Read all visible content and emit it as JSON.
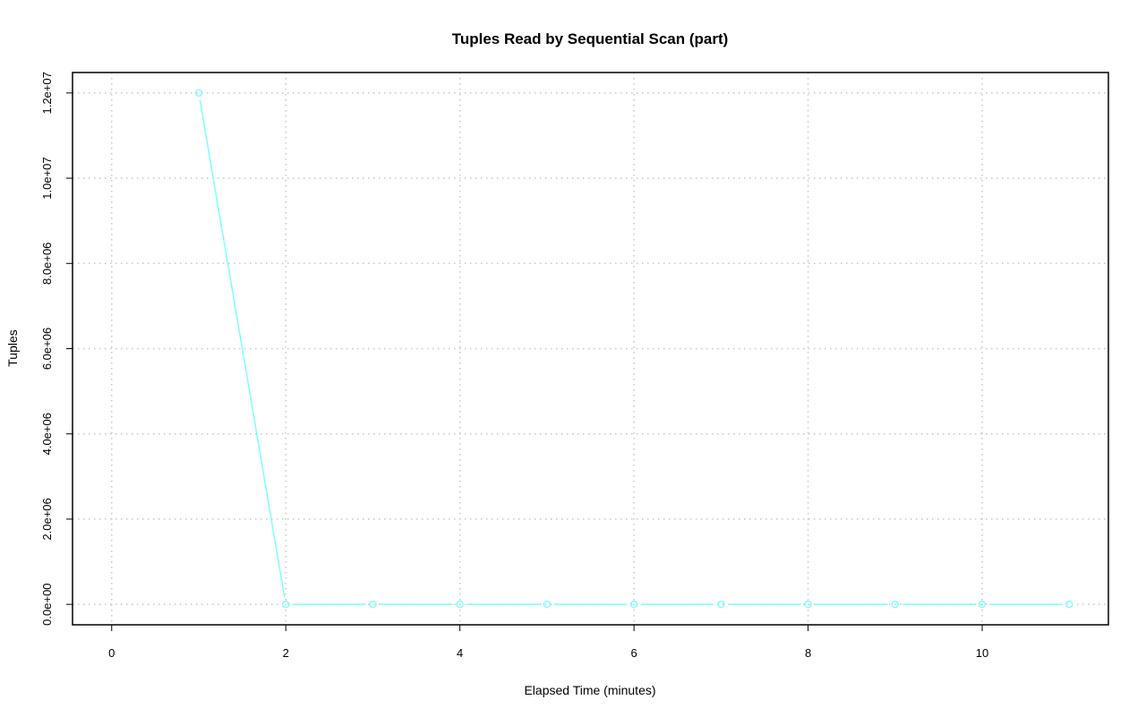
{
  "chart_data": {
    "type": "line",
    "title": "Tuples Read by Sequential Scan (part)",
    "xlabel": "Elapsed Time (minutes)",
    "ylabel": "Tuples",
    "xlim": [
      -0.45,
      11.45
    ],
    "ylim": [
      -480000,
      12480000
    ],
    "x_ticks": [
      0,
      2,
      4,
      6,
      8,
      10
    ],
    "x_tick_labels": [
      "0",
      "2",
      "4",
      "6",
      "8",
      "10"
    ],
    "y_ticks": [
      0,
      2000000,
      4000000,
      6000000,
      8000000,
      10000000,
      12000000
    ],
    "y_tick_labels": [
      "0.0e+00",
      "2.0e+06",
      "4.0e+06",
      "6.0e+06",
      "8.0e+06",
      "1.0e+07",
      "1.2e+07"
    ],
    "grid": true,
    "legend": "none",
    "series": [
      {
        "color": "#7fffff",
        "marker": "open-circle",
        "x": [
          1,
          2,
          3,
          4,
          5,
          6,
          7,
          8,
          9,
          10,
          11
        ],
        "y": [
          12000000,
          0,
          0,
          0,
          0,
          0,
          0,
          0,
          0,
          0,
          0
        ]
      }
    ]
  }
}
